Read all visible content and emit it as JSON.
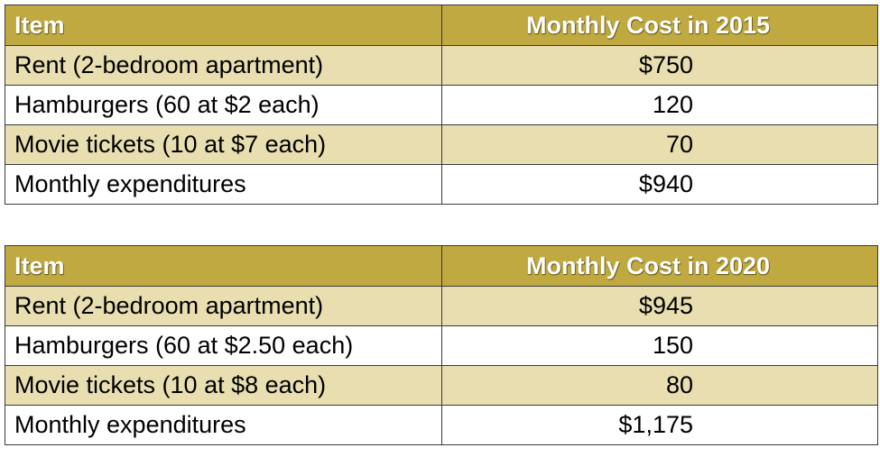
{
  "colors": {
    "header_bg": "#bfa940",
    "header_text": "#ffffff",
    "row_shaded": "#e8deb0",
    "row_plain": "#ffffff",
    "border": "#3a3a3a"
  },
  "tables": [
    {
      "header": {
        "item": "Item",
        "cost": "Monthly Cost in 2015"
      },
      "rows": [
        {
          "item": "Rent (2-bedroom apartment)",
          "cost": "$750"
        },
        {
          "item": "Hamburgers (60 at $2 each)",
          "cost": "120"
        },
        {
          "item": "Movie tickets (10 at $7 each)",
          "cost": "70"
        },
        {
          "item": "Monthly expenditures",
          "cost": "$940"
        }
      ]
    },
    {
      "header": {
        "item": "Item",
        "cost": "Monthly Cost in 2020"
      },
      "rows": [
        {
          "item": "Rent (2-bedroom apartment)",
          "cost": "$945"
        },
        {
          "item": "Hamburgers (60 at $2.50 each)",
          "cost": "150"
        },
        {
          "item": "Movie tickets (10 at $8 each)",
          "cost": "80"
        },
        {
          "item": "Monthly expenditures",
          "cost": "$1,175"
        }
      ]
    }
  ]
}
